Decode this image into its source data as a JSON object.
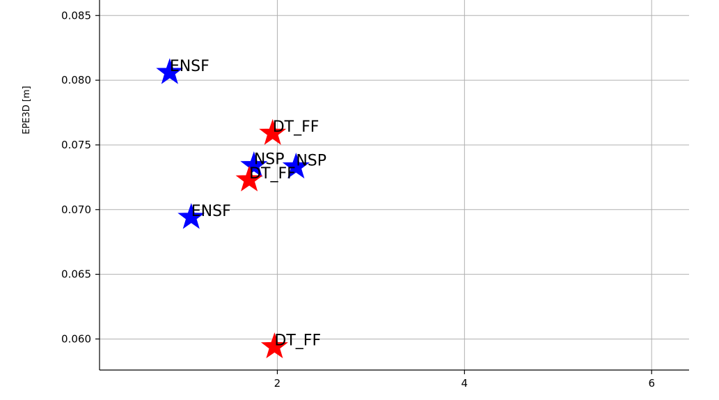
{
  "chart_data": {
    "type": "scatter",
    "title": "",
    "xlabel": "",
    "ylabel": "EPE3D [m]",
    "xlim": [
      0.1,
      6.4
    ],
    "ylim": [
      0.0576,
      0.0862
    ],
    "xticks": [
      2,
      4,
      6
    ],
    "yticks": [
      0.06,
      0.065,
      0.07,
      0.075,
      0.08,
      0.085
    ],
    "xtick_labels": [
      "2",
      "4",
      "6"
    ],
    "ytick_labels": [
      "0.060",
      "0.065",
      "0.070",
      "0.075",
      "0.080",
      "0.085"
    ],
    "grid": true,
    "marker": "star",
    "points": [
      {
        "label": "ENSF",
        "x": 0.85,
        "y": 0.0806,
        "color": "#0000ff"
      },
      {
        "label": "DT_FF",
        "x": 1.95,
        "y": 0.0759,
        "color": "#ff0000"
      },
      {
        "label": "NSP",
        "x": 1.75,
        "y": 0.0734,
        "color": "#0000ff"
      },
      {
        "label": "NSP",
        "x": 2.2,
        "y": 0.0733,
        "color": "#0000ff"
      },
      {
        "label": "DT_FF",
        "x": 1.7,
        "y": 0.0723,
        "color": "#ff0000"
      },
      {
        "label": "ENSF",
        "x": 1.08,
        "y": 0.0694,
        "color": "#0000ff"
      },
      {
        "label": "DT_FF",
        "x": 1.97,
        "y": 0.0594,
        "color": "#ff0000"
      }
    ]
  }
}
